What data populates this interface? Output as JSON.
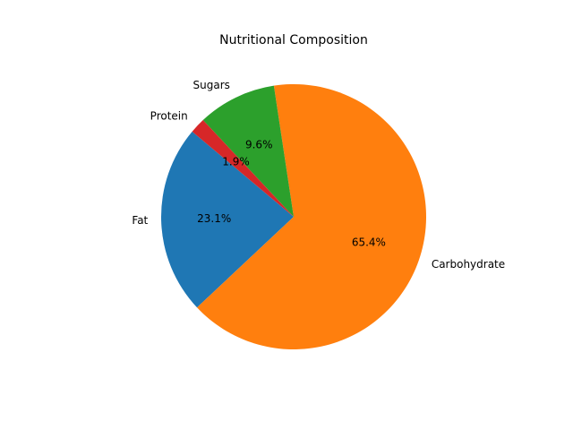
{
  "chart_data": {
    "type": "pie",
    "title": "Nutritional Composition",
    "categories": [
      "Fat",
      "Carbohydrate",
      "Sugars",
      "Protein"
    ],
    "values": [
      23.1,
      65.4,
      9.6,
      1.9
    ],
    "percent_labels": [
      "23.1%",
      "65.4%",
      "9.6%",
      "1.9%"
    ],
    "colors": [
      "#1f77b4",
      "#ff7f0e",
      "#2ca02c",
      "#d62728"
    ],
    "start_angle_deg": 140,
    "direction": "counterclockwise",
    "legend": "none"
  }
}
